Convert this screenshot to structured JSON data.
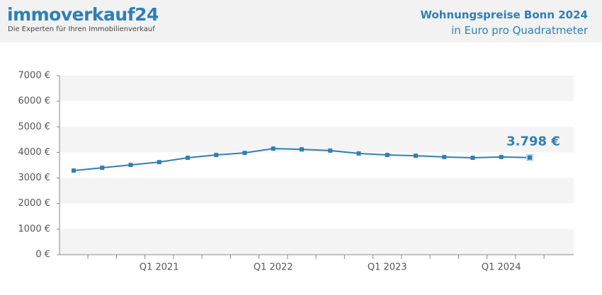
{
  "header": {
    "logo": "immoverkauf24",
    "tagline": "Die Experten für Ihren Immobilienverkauf"
  },
  "chart_data": {
    "type": "line",
    "title": "Wohnungspreise Bonn 2024",
    "subtitle": "in Euro pro Quadratmeter",
    "categories": [
      null,
      null,
      null,
      "Q1 2021",
      null,
      null,
      null,
      "Q1 2022",
      null,
      null,
      null,
      "Q1 2023",
      null,
      null,
      null,
      "Q1 2024",
      null
    ],
    "values": [
      3290,
      3400,
      3510,
      3620,
      3790,
      3900,
      3980,
      4150,
      4120,
      4070,
      3960,
      3900,
      3870,
      3820,
      3790,
      3820,
      3798
    ],
    "value_labels": [
      null,
      null,
      null,
      null,
      null,
      null,
      null,
      null,
      null,
      null,
      null,
      null,
      null,
      null,
      null,
      null,
      "3.798 €"
    ],
    "color": "#2e7fb8",
    "ylim": [
      0,
      7000
    ],
    "yticks": [
      {
        "value": 0,
        "label": "0 €"
      },
      {
        "value": 1000,
        "label": "1000 €"
      },
      {
        "value": 2000,
        "label": "2000 €"
      },
      {
        "value": 3000,
        "label": "3000 €"
      },
      {
        "value": 4000,
        "label": "4000 €"
      },
      {
        "value": 5000,
        "label": "5000 €"
      },
      {
        "value": 6000,
        "label": "6000 €"
      },
      {
        "value": 7000,
        "label": "7000 €"
      }
    ],
    "grid": "banded"
  }
}
